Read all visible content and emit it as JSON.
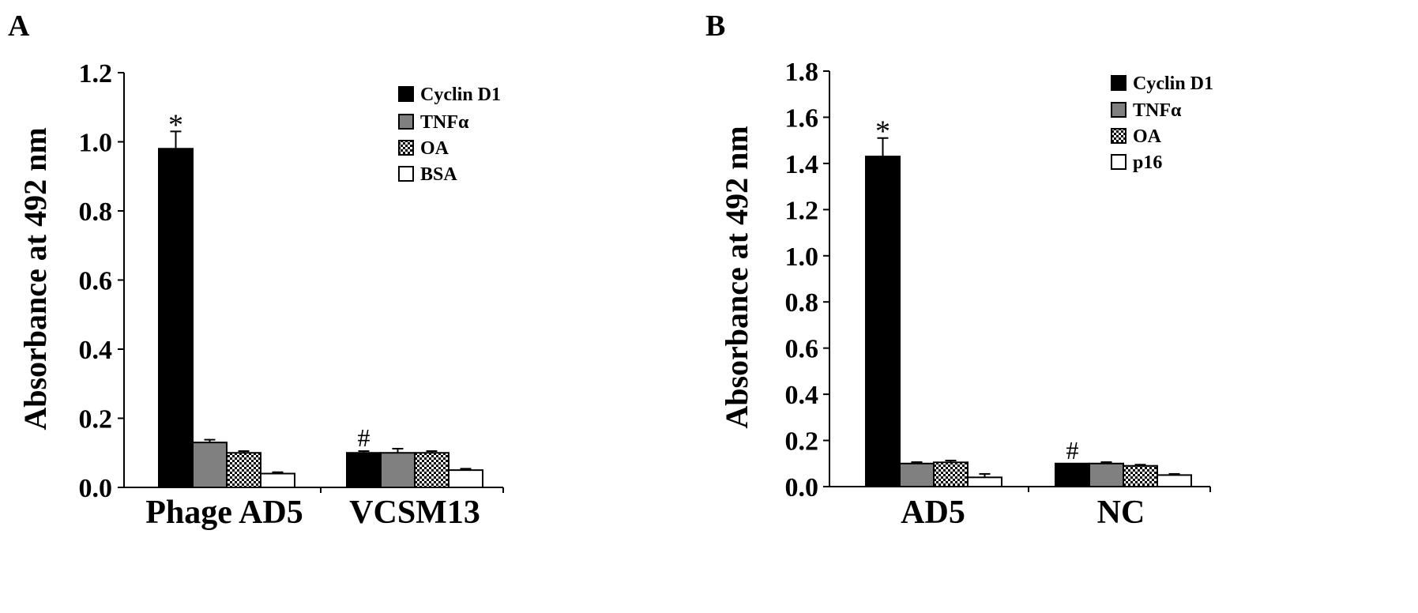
{
  "colors": {
    "cyclin_d1": "#000000",
    "tnfa": "#808080",
    "oa_pattern_fg": "#000000",
    "oa_pattern_bg": "#ffffff",
    "empty_bar": "#ffffff",
    "axis": "#000000"
  },
  "chart_data": [
    {
      "panel_label": "A",
      "type": "bar",
      "ylabel": "Absorbance at 492 nm",
      "xlabel": "",
      "ylim": [
        0,
        1.2
      ],
      "yticks": [
        "0.0",
        "0.2",
        "0.4",
        "0.6",
        "0.8",
        "1.0",
        "1.2"
      ],
      "categories": [
        "Phage AD5",
        "VCSM13"
      ],
      "legend_position": "top-right",
      "series": [
        {
          "name": "Cyclin D1",
          "style": "solid-black",
          "values": [
            0.98,
            0.1
          ],
          "errors": [
            0.05,
            0.005
          ]
        },
        {
          "name": "TNFα",
          "style": "solid-gray",
          "values": [
            0.13,
            0.1
          ],
          "errors": [
            0.008,
            0.012
          ]
        },
        {
          "name": "OA",
          "style": "checker",
          "values": [
            0.1,
            0.1
          ],
          "errors": [
            0.005,
            0.005
          ]
        },
        {
          "name": "BSA",
          "style": "white",
          "values": [
            0.04,
            0.05
          ],
          "errors": [
            0.004,
            0.004
          ]
        }
      ],
      "annotations": [
        {
          "text": "*",
          "category": 0,
          "series": 0
        },
        {
          "text": "#",
          "category": 1,
          "series": 0
        }
      ]
    },
    {
      "panel_label": "B",
      "type": "bar",
      "ylabel": "Absorbance at 492 nm",
      "xlabel": "",
      "ylim": [
        0,
        1.8
      ],
      "yticks": [
        "0.0",
        "0.2",
        "0.4",
        "0.6",
        "0.8",
        "1.0",
        "1.2",
        "1.4",
        "1.6",
        "1.8"
      ],
      "categories": [
        "AD5",
        "NC"
      ],
      "legend_position": "top-right",
      "series": [
        {
          "name": "Cyclin D1",
          "style": "solid-black",
          "values": [
            1.43,
            0.1
          ],
          "errors": [
            0.08,
            0.0
          ]
        },
        {
          "name": "TNFα",
          "style": "solid-gray",
          "values": [
            0.1,
            0.1
          ],
          "errors": [
            0.006,
            0.006
          ]
        },
        {
          "name": "OA",
          "style": "checker",
          "values": [
            0.105,
            0.09
          ],
          "errors": [
            0.008,
            0.005
          ]
        },
        {
          "name": "p16",
          "style": "white",
          "values": [
            0.04,
            0.05
          ],
          "errors": [
            0.015,
            0.005
          ]
        }
      ],
      "annotations": [
        {
          "text": "*",
          "category": 0,
          "series": 0
        },
        {
          "text": "#",
          "category": 1,
          "series": 0
        }
      ]
    }
  ]
}
